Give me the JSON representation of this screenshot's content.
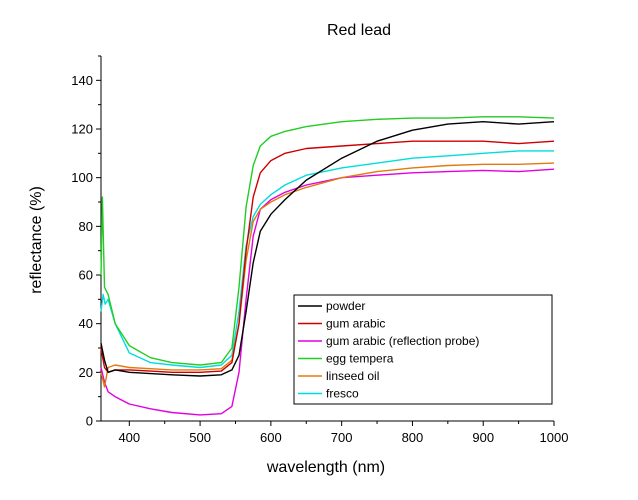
{
  "chart_data": {
    "type": "line",
    "title": "Red lead",
    "xlabel": "wavelength (nm)",
    "ylabel": "reflectance (%)",
    "xlim": [
      360,
      1000
    ],
    "ylim": [
      0,
      150
    ],
    "xticks": [
      400,
      500,
      600,
      700,
      800,
      900,
      1000
    ],
    "yticks": [
      0,
      20,
      40,
      60,
      80,
      100,
      120,
      140
    ],
    "legend_position": "lower-right",
    "series": [
      {
        "name": "powder",
        "color": "#000000",
        "x": [
          360,
          365,
          370,
          380,
          400,
          430,
          460,
          500,
          530,
          545,
          555,
          565,
          575,
          585,
          600,
          620,
          650,
          700,
          750,
          800,
          850,
          900,
          950,
          1000
        ],
        "y": [
          32,
          25,
          20,
          21,
          20,
          19.5,
          19,
          18.5,
          19,
          21,
          27,
          45,
          65,
          78,
          85,
          91,
          99,
          108,
          115,
          119.5,
          122,
          123,
          122,
          123
        ]
      },
      {
        "name": "gum arabic",
        "color": "#cc0000",
        "x": [
          360,
          365,
          370,
          380,
          400,
          430,
          460,
          500,
          530,
          545,
          555,
          565,
          575,
          585,
          600,
          620,
          650,
          700,
          750,
          800,
          850,
          900,
          950,
          1000
        ],
        "y": [
          30,
          22,
          20,
          21,
          21,
          20.5,
          20,
          20,
          20.5,
          24,
          40,
          70,
          92,
          102,
          107,
          110,
          112,
          113,
          114,
          115,
          115,
          115,
          114,
          115
        ]
      },
      {
        "name": "gum arabic (reflection probe)",
        "color": "#e000e0",
        "x": [
          360,
          365,
          370,
          380,
          400,
          430,
          460,
          500,
          530,
          545,
          555,
          565,
          575,
          585,
          600,
          620,
          650,
          700,
          750,
          800,
          850,
          900,
          950,
          1000
        ],
        "y": [
          22,
          16,
          12,
          10,
          7,
          5,
          3.5,
          2.5,
          3,
          6,
          20,
          50,
          76,
          87,
          91,
          94,
          97,
          100,
          101,
          102,
          102.5,
          103,
          102.5,
          103.5
        ]
      },
      {
        "name": "egg tempera",
        "color": "#22cc22",
        "x": [
          360,
          362,
          365,
          370,
          380,
          400,
          430,
          460,
          500,
          530,
          545,
          555,
          565,
          575,
          585,
          600,
          620,
          650,
          700,
          750,
          800,
          850,
          900,
          950,
          1000
        ],
        "y": [
          60,
          92,
          55,
          52,
          40,
          31,
          26,
          24,
          23,
          24,
          30,
          55,
          88,
          105,
          113,
          117,
          119,
          121,
          123,
          124,
          124.5,
          124.5,
          125,
          125,
          124.5
        ]
      },
      {
        "name": "linseed oil",
        "color": "#e07b10",
        "x": [
          360,
          365,
          370,
          380,
          400,
          430,
          460,
          500,
          530,
          545,
          555,
          565,
          575,
          585,
          600,
          620,
          650,
          700,
          750,
          800,
          850,
          900,
          950,
          1000
        ],
        "y": [
          20,
          14,
          22,
          23,
          22,
          21.5,
          21,
          21,
          21.5,
          25,
          40,
          66,
          82,
          87,
          90,
          93,
          96,
          100,
          102.5,
          104,
          105,
          105.5,
          105.5,
          106
        ]
      },
      {
        "name": "fresco",
        "color": "#00dddd",
        "x": [
          360,
          363,
          366,
          370,
          380,
          400,
          430,
          460,
          500,
          530,
          545,
          555,
          565,
          575,
          585,
          600,
          620,
          650,
          700,
          750,
          800,
          850,
          900,
          950,
          1000
        ],
        "y": [
          45,
          52,
          48,
          50,
          40,
          28,
          24,
          23,
          22,
          23,
          27,
          45,
          72,
          84,
          89,
          93,
          97,
          101,
          104,
          106,
          108,
          109,
          110,
          111,
          111
        ]
      }
    ]
  }
}
